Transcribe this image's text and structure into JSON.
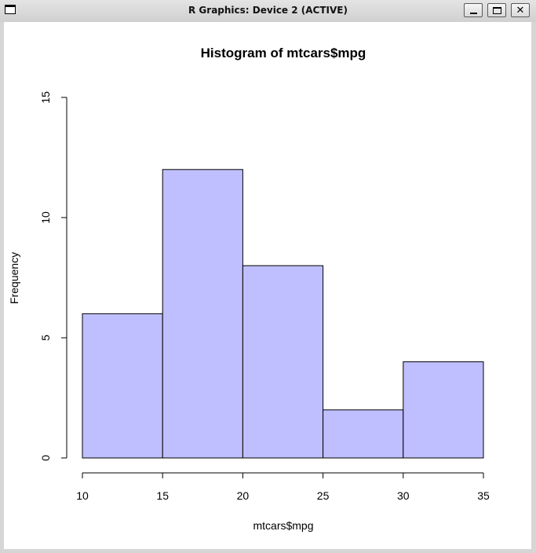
{
  "window": {
    "title": "R Graphics: Device 2 (ACTIVE)",
    "controls": {
      "minimize_icon": "minimize-icon",
      "maximize_icon": "maximize-icon",
      "close_icon": "close-icon",
      "close_glyph": "✕"
    }
  },
  "chart_data": {
    "type": "bar",
    "title": "Histogram of mtcars$mpg",
    "xlabel": "mtcars$mpg",
    "ylabel": "Frequency",
    "bins": [
      {
        "from": 10,
        "to": 15,
        "count": 6
      },
      {
        "from": 15,
        "to": 20,
        "count": 12
      },
      {
        "from": 20,
        "to": 25,
        "count": 8
      },
      {
        "from": 25,
        "to": 30,
        "count": 2
      },
      {
        "from": 30,
        "to": 35,
        "count": 4
      }
    ],
    "xlim": [
      10,
      35
    ],
    "ylim": [
      0,
      15
    ],
    "xticks": [
      10,
      15,
      20,
      25,
      30,
      35
    ],
    "yticks": [
      0,
      5,
      10,
      15
    ],
    "bar_color": "#bfbfff",
    "grid": false
  }
}
